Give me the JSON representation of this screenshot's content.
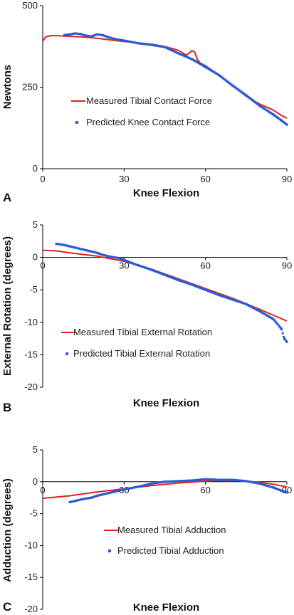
{
  "colors": {
    "measured": "#e3221c",
    "predicted": "#2b5bd6"
  },
  "chart_data": [
    {
      "type": "line",
      "panel_label": "A",
      "xlabel": "Knee Flexion",
      "ylabel": "Newtons",
      "xlim": [
        0,
        90
      ],
      "ylim": [
        0,
        500
      ],
      "xticks": [
        "0",
        "30",
        "60",
        "90"
      ],
      "yticks": [
        "0",
        "250",
        "500"
      ],
      "legend": [
        "Measured Tibial Contact Force",
        "Predicted Knee Contact Force"
      ],
      "series": [
        {
          "name": "Measured Tibial Contact Force",
          "style": "line",
          "x": [
            0,
            1,
            3,
            5,
            10,
            15,
            20,
            25,
            30,
            35,
            40,
            45,
            50,
            53,
            55,
            56,
            57,
            58,
            60,
            65,
            70,
            75,
            80,
            85,
            88,
            90
          ],
          "y": [
            390,
            404,
            408,
            408,
            406,
            404,
            400,
            395,
            390,
            386,
            382,
            375,
            363,
            348,
            362,
            358,
            335,
            325,
            316,
            287,
            255,
            222,
            198,
            180,
            163,
            155
          ]
        },
        {
          "name": "Predicted Knee Contact Force",
          "style": "scatter",
          "x": [
            8,
            10,
            12,
            14,
            16,
            18,
            20,
            22,
            24,
            26,
            28,
            30,
            32,
            35,
            40,
            45,
            50,
            55,
            60,
            65,
            70,
            75,
            80,
            85,
            88,
            90
          ],
          "y": [
            410,
            412,
            415,
            413,
            408,
            406,
            412,
            410,
            404,
            399,
            396,
            393,
            390,
            385,
            380,
            373,
            354,
            336,
            312,
            287,
            255,
            225,
            193,
            166,
            148,
            135
          ]
        }
      ]
    },
    {
      "type": "line",
      "panel_label": "B",
      "xlabel": "Knee Flexion",
      "ylabel": "External Rotation (degrees)",
      "xlim": [
        0,
        90
      ],
      "ylim": [
        -20,
        5
      ],
      "xticks": [
        "0",
        "30",
        "60",
        "90"
      ],
      "yticks": [
        "5",
        "0",
        "-5",
        "-10",
        "-15",
        "-20"
      ],
      "legend": [
        "Measured Tibial External Rotation",
        "Predicted Tibial External Rotation"
      ],
      "series": [
        {
          "name": "Measured Tibial External Rotation",
          "style": "line",
          "x": [
            0,
            5,
            10,
            20,
            30,
            40,
            50,
            60,
            70,
            80,
            90
          ],
          "y": [
            1.1,
            1.0,
            0.7,
            0.2,
            -0.6,
            -1.8,
            -3.3,
            -4.8,
            -6.3,
            -8.0,
            -9.8
          ]
        },
        {
          "name": "Predicted Tibial External Rotation",
          "style": "scatter",
          "x": [
            5,
            8,
            10,
            12,
            15,
            18,
            20,
            22,
            25,
            28,
            30,
            33,
            35,
            38,
            40,
            45,
            50,
            55,
            60,
            65,
            70,
            75,
            80,
            85,
            88,
            89,
            90
          ],
          "y": [
            2.1,
            1.9,
            1.7,
            1.5,
            1.2,
            0.9,
            0.7,
            0.4,
            0.1,
            -0.1,
            -0.4,
            -0.9,
            -1.2,
            -1.6,
            -1.9,
            -2.7,
            -3.5,
            -4.2,
            -5.0,
            -5.8,
            -6.5,
            -7.2,
            -8.3,
            -9.5,
            -11.0,
            -12.5,
            -13.0
          ]
        }
      ]
    },
    {
      "type": "line",
      "panel_label": "C",
      "xlabel": "Knee Flexion",
      "ylabel": "Adduction (degrees)",
      "xlim": [
        0,
        90
      ],
      "ylim": [
        -20,
        5
      ],
      "xticks": [
        "0",
        "30",
        "60",
        "90"
      ],
      "yticks": [
        "5",
        "0",
        "-5",
        "-10",
        "-15",
        "-20"
      ],
      "legend": [
        "Measured Tibial Adduction",
        "Predicted Tibial Adduction"
      ],
      "series": [
        {
          "name": "Measured Tibial Adduction",
          "style": "line",
          "x": [
            0,
            10,
            20,
            30,
            40,
            50,
            60,
            70,
            75,
            80,
            85,
            90
          ],
          "y": [
            -2.6,
            -2.2,
            -1.6,
            -1.1,
            -0.6,
            -0.2,
            0.1,
            0.2,
            0.1,
            -0.1,
            -0.4,
            -0.8
          ]
        },
        {
          "name": "Predicted Tibial Adduction",
          "style": "scatter",
          "x": [
            10,
            12,
            15,
            18,
            20,
            25,
            30,
            35,
            40,
            45,
            50,
            55,
            60,
            65,
            70,
            75,
            80,
            85,
            88,
            90
          ],
          "y": [
            -3.2,
            -3.0,
            -2.7,
            -2.5,
            -2.2,
            -1.7,
            -1.2,
            -0.8,
            -0.3,
            0.0,
            0.1,
            0.2,
            0.4,
            0.3,
            0.3,
            0.1,
            -0.3,
            -0.9,
            -1.4,
            -1.7
          ]
        }
      ]
    }
  ]
}
